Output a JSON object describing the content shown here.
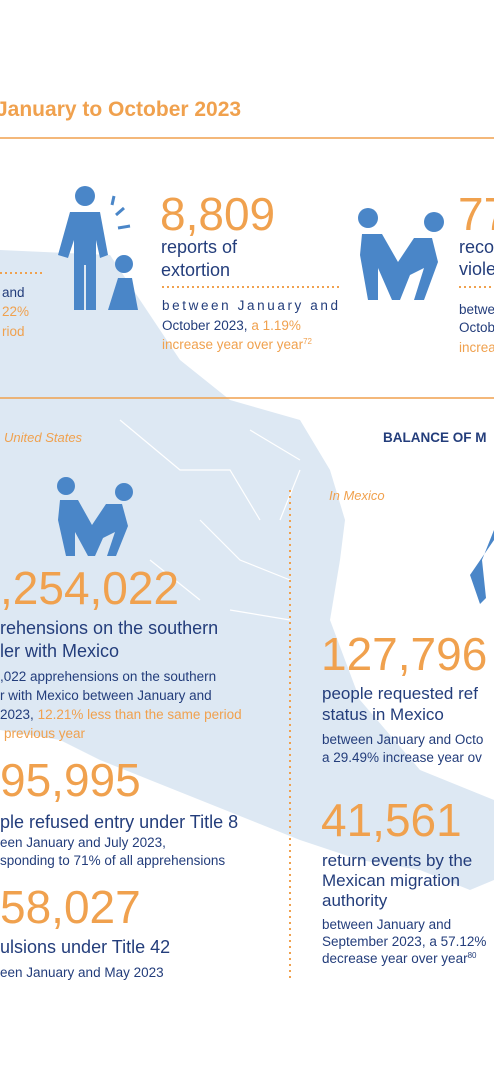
{
  "header": {
    "title": "January to October 2023"
  },
  "left_fragment": {
    "lines": [
      "and",
      "22%",
      "riod"
    ]
  },
  "extortion": {
    "number": "8,809",
    "label": [
      "reports of",
      "extortion"
    ],
    "detail": [
      "between January and",
      "October 2023,",
      "a 1.19%",
      "increase year over year",
      "72"
    ]
  },
  "violence": {
    "number": "77",
    "label": [
      "reco",
      "viole"
    ],
    "detail": [
      "betwe",
      "Octob",
      "increa"
    ]
  },
  "united_states": {
    "heading": "United States",
    "apprehensions": {
      "number": ",254,022",
      "label": [
        "rehensions on the southern",
        "ler with Mexico"
      ],
      "detail": [
        ",022 apprehensions on the southern",
        "r with Mexico between January and",
        "2023,",
        "12.21% less than the same period",
        "previous year"
      ]
    },
    "title8": {
      "number": "95,995",
      "label": "ple refused entry under Title 8",
      "detail": [
        "een January and July 2023,",
        "sponding to 71% of all apprehensions"
      ]
    },
    "title42": {
      "number": "58,027",
      "label": "ulsions under Title 42",
      "detail": [
        "een January and May 2023"
      ]
    }
  },
  "balance_heading": "BALANCE OF M",
  "mexico": {
    "heading": "In Mexico",
    "refugee": {
      "number": "127,796",
      "label": [
        "people requested ref",
        "status in Mexico"
      ],
      "detail": [
        "between January and Octo",
        "a 29.49% increase year ov"
      ]
    },
    "returns": {
      "number": "41,561",
      "label": [
        "return events by the",
        "Mexican migration",
        "authority"
      ],
      "detail": [
        "between January and",
        "September 2023, a 57.12%",
        "decrease year over year",
        "80"
      ]
    }
  }
}
